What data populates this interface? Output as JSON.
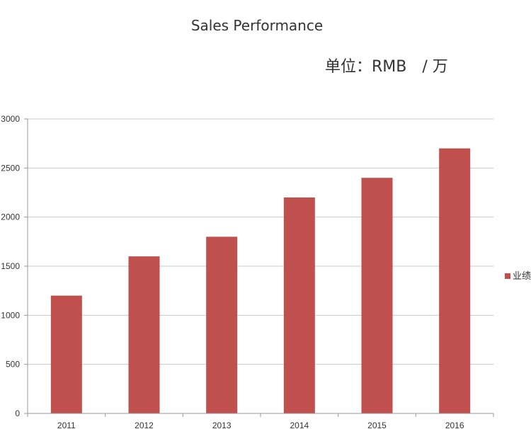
{
  "chart_data": {
    "type": "bar",
    "title": "Sales Performance",
    "subtitle": "单位：RMB　/ 万",
    "categories": [
      "2011",
      "2012",
      "2013",
      "2014",
      "2015",
      "2016"
    ],
    "series": [
      {
        "name": "业绩",
        "values": [
          1200,
          1600,
          1800,
          2200,
          2400,
          2700
        ],
        "color": "#c0504d"
      }
    ],
    "ylim": [
      0,
      3000
    ],
    "yticks": [
      0,
      500,
      1000,
      1500,
      2000,
      2500,
      3000
    ],
    "grid": true,
    "legend": "right"
  }
}
